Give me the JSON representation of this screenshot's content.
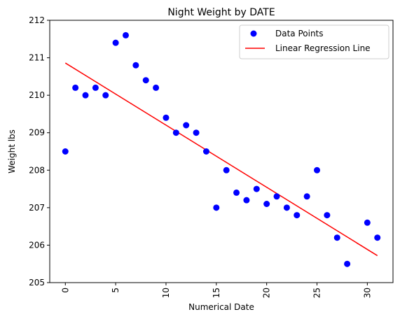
{
  "chart_data": {
    "type": "scatter",
    "title": "Night Weight by DATE",
    "xlabel": "Numerical Date",
    "ylabel": "Weight lbs",
    "xlim": [
      -1.55,
      32.55
    ],
    "ylim": [
      205,
      212
    ],
    "xticks": [
      0,
      5,
      10,
      15,
      20,
      25,
      30
    ],
    "yticks": [
      205,
      206,
      207,
      208,
      209,
      210,
      211,
      212
    ],
    "x_tick_rotation": 90,
    "grid": false,
    "legend_position": "top-right",
    "series": [
      {
        "name": "Data Points",
        "kind": "scatter",
        "color": "#0000ff",
        "x": [
          0,
          1,
          2,
          3,
          4,
          5,
          6,
          7,
          8,
          9,
          10,
          11,
          12,
          13,
          14,
          15,
          16,
          17,
          18,
          19,
          20,
          21,
          22,
          23,
          24,
          25,
          26,
          27,
          28,
          29,
          30,
          31
        ],
        "y": [
          208.5,
          210.2,
          210.0,
          210.2,
          210.0,
          211.4,
          211.6,
          210.8,
          210.4,
          210.2,
          209.4,
          209.0,
          209.2,
          209.0,
          208.5,
          207.0,
          208.0,
          207.4,
          207.2,
          207.5,
          207.1,
          207.3,
          207.0,
          206.8,
          207.3,
          208.0,
          206.8,
          206.2,
          205.5,
          null,
          206.6,
          206.2
        ]
      },
      {
        "name": "Linear Regression Line",
        "kind": "line",
        "color": "#ff0000",
        "x": [
          0,
          31
        ],
        "y": [
          210.86,
          205.72
        ]
      }
    ]
  }
}
